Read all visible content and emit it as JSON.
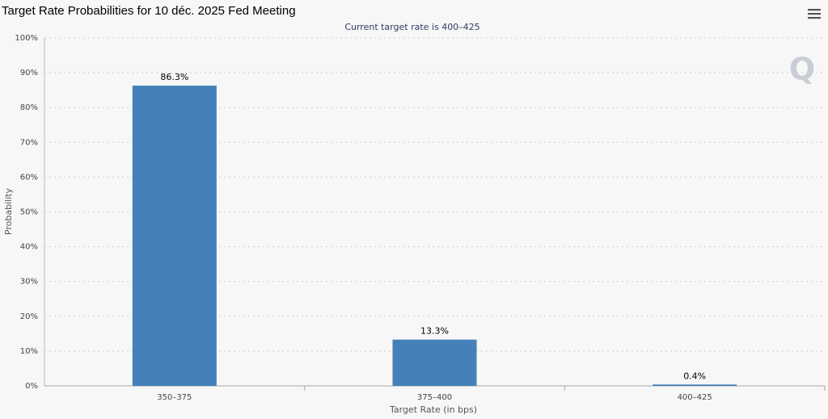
{
  "chart_data": {
    "type": "bar",
    "title": "Target Rate Probabilities for 10 déc. 2025 Fed Meeting",
    "subtitle": "Current target rate is 400–425",
    "x_label": "Target Rate (in bps)",
    "y_label": "Probability",
    "categories": [
      "350–375",
      "375–400",
      "400–425"
    ],
    "values": [
      86.3,
      13.3,
      0.4
    ],
    "value_labels": [
      "86.3%",
      "13.3%",
      "0.4%"
    ],
    "color": "#4580b8",
    "ylim": [
      0,
      100
    ],
    "yticks": [
      {
        "value": 0,
        "label": "0%"
      },
      {
        "value": 10,
        "label": "10%"
      },
      {
        "value": 20,
        "label": "20%"
      },
      {
        "value": 30,
        "label": "30%"
      },
      {
        "value": 40,
        "label": "40%"
      },
      {
        "value": 50,
        "label": "50%"
      },
      {
        "value": 60,
        "label": "60%"
      },
      {
        "value": 70,
        "label": "70%"
      },
      {
        "value": 80,
        "label": "80%"
      },
      {
        "value": 90,
        "label": "90%"
      },
      {
        "value": 100,
        "label": "100%"
      }
    ],
    "grid": true
  }
}
